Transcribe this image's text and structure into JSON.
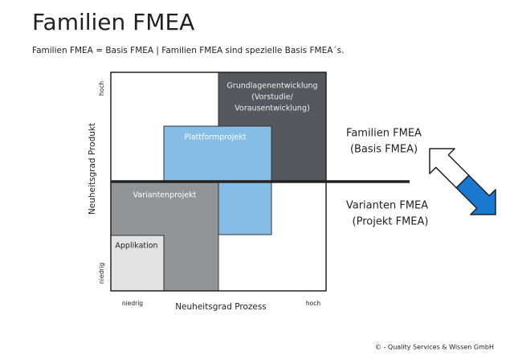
{
  "header": {
    "title": "Familien FMEA",
    "subtitle": "Familien FMEA = Basis FMEA | Familien FMEA sind spezielle Basis FMEA´s."
  },
  "matrix": {
    "y_axis": {
      "label": "Neuheitsgrad Produkt",
      "low": "niedrig",
      "high": "hoch"
    },
    "x_axis": {
      "label": "Neuheitsgrad Prozess",
      "low": "niedrig",
      "high": "hoch"
    },
    "boxes": [
      {
        "lines": [
          "Grundlagenentwicklung",
          "(Vorstudie/",
          "Vorausentwicklung)"
        ]
      },
      {
        "lines": [
          "Plattformprojekt"
        ]
      },
      {
        "lines": [
          "Variantenprojekt"
        ]
      },
      {
        "lines": [
          "Applikation"
        ]
      }
    ]
  },
  "side_labels": {
    "upper": [
      "Familien FMEA",
      "(Basis FMEA)"
    ],
    "lower": [
      "Varianten FMEA",
      "(Projekt FMEA)"
    ]
  },
  "footer": "© - Quality Services & Wissen GmbH"
}
